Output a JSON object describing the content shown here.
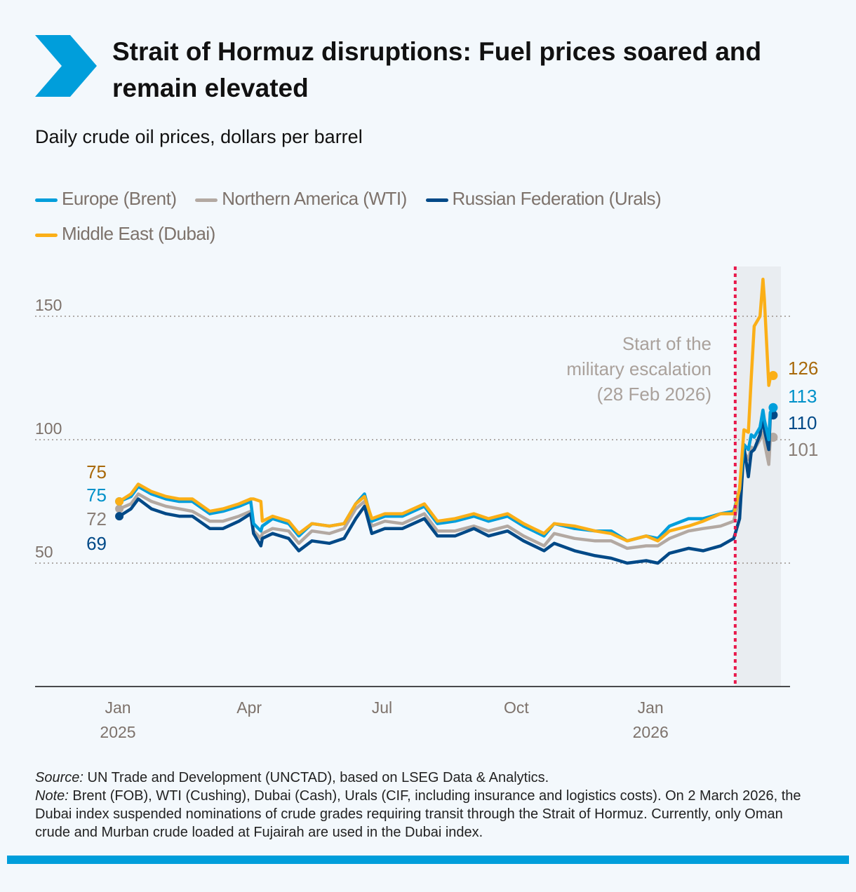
{
  "title": "Strait of Hormuz disruptions: Fuel prices soared and remain elevated",
  "subtitle": "Daily crude oil prices, dollars per barrel",
  "colors": {
    "accent": "#009edb",
    "brent": "#009edb",
    "wti": "#b3a9a2",
    "urals": "#004987",
    "dubai": "#fbaf17",
    "event_line": "#e8194b",
    "shade": "#e9edf1"
  },
  "legend": [
    {
      "label": "Europe (Brent)",
      "color": "#009edb"
    },
    {
      "label": "Northern America (WTI)",
      "color": "#b3a9a2"
    },
    {
      "label": "Russian Federation (Urals)",
      "color": "#004987"
    },
    {
      "label": "Middle East (Dubai)",
      "color": "#fbaf17"
    }
  ],
  "chart_data": {
    "type": "line",
    "title": "Daily crude oil prices, dollars per barrel",
    "xlabel": "",
    "ylabel": "dollars per barrel",
    "ylim": [
      0,
      170
    ],
    "yticks": [
      50,
      100,
      150
    ],
    "grid": true,
    "legend_position": "top",
    "x_ticks": [
      {
        "date": "2025-01-01",
        "label": "Jan",
        "sublabel": "2025"
      },
      {
        "date": "2025-04-01",
        "label": "Apr",
        "sublabel": ""
      },
      {
        "date": "2025-07-01",
        "label": "Jul",
        "sublabel": ""
      },
      {
        "date": "2025-10-01",
        "label": "Oct",
        "sublabel": ""
      },
      {
        "date": "2026-01-01",
        "label": "Jan",
        "sublabel": "2026"
      }
    ],
    "x": [
      "2025-01-02",
      "2025-01-10",
      "2025-01-15",
      "2025-01-24",
      "2025-02-03",
      "2025-02-12",
      "2025-02-21",
      "2025-03-05",
      "2025-03-14",
      "2025-03-25",
      "2025-04-02",
      "2025-04-04",
      "2025-04-09",
      "2025-04-10",
      "2025-04-17",
      "2025-04-28",
      "2025-05-05",
      "2025-05-14",
      "2025-05-26",
      "2025-06-05",
      "2025-06-13",
      "2025-06-19",
      "2025-06-24",
      "2025-07-03",
      "2025-07-15",
      "2025-07-30",
      "2025-08-08",
      "2025-08-20",
      "2025-09-02",
      "2025-09-12",
      "2025-09-25",
      "2025-10-06",
      "2025-10-20",
      "2025-10-27",
      "2025-11-10",
      "2025-11-24",
      "2025-12-05",
      "2025-12-16",
      "2025-12-29",
      "2026-01-06",
      "2026-01-14",
      "2026-01-27",
      "2026-02-06",
      "2026-02-18",
      "2026-02-27",
      "2026-03-03",
      "2026-03-06",
      "2026-03-09",
      "2026-03-11",
      "2026-03-13",
      "2026-03-17",
      "2026-03-19",
      "2026-03-20",
      "2026-03-23",
      "2026-03-24",
      "2026-03-26"
    ],
    "series": [
      {
        "name": "Northern America (WTI)",
        "key": "wti",
        "start_label": "72",
        "end_label": "101",
        "values": [
          72,
          74,
          78,
          75,
          73,
          72,
          71,
          67,
          67,
          69,
          71,
          63,
          60,
          62,
          64,
          63,
          58,
          63,
          62,
          64,
          72,
          75,
          65,
          67,
          66,
          70,
          63,
          63,
          65,
          63,
          65,
          61,
          57,
          62,
          60,
          59,
          59,
          56,
          57,
          57,
          60,
          63,
          64,
          65,
          67,
          77,
          95,
          92,
          97,
          96,
          100,
          103,
          99,
          90,
          100,
          101
        ]
      },
      {
        "name": "Russian Federation (Urals)",
        "key": "urals",
        "start_label": "69",
        "end_label": "110",
        "values": [
          69,
          72,
          76,
          72,
          70,
          69,
          69,
          64,
          64,
          67,
          70,
          62,
          57,
          60,
          62,
          60,
          55,
          59,
          58,
          60,
          68,
          73,
          62,
          64,
          64,
          68,
          61,
          61,
          64,
          61,
          63,
          59,
          55,
          58,
          55,
          53,
          52,
          50,
          51,
          50,
          54,
          56,
          55,
          57,
          60,
          68,
          97,
          85,
          95,
          96,
          102,
          110,
          104,
          96,
          109,
          110
        ]
      },
      {
        "name": "Europe (Brent)",
        "key": "brent",
        "start_label": "75",
        "end_label": "113",
        "values": [
          75,
          77,
          81,
          78,
          76,
          75,
          75,
          70,
          71,
          73,
          75,
          66,
          63,
          65,
          68,
          66,
          61,
          66,
          65,
          66,
          74,
          78,
          67,
          69,
          69,
          73,
          66,
          67,
          69,
          67,
          69,
          65,
          61,
          66,
          64,
          63,
          63,
          59,
          61,
          60,
          65,
          68,
          68,
          70,
          71,
          80,
          98,
          96,
          102,
          101,
          105,
          112,
          108,
          100,
          111,
          113
        ]
      },
      {
        "name": "Middle East (Dubai)",
        "key": "dubai",
        "start_label": "75",
        "end_label": "126",
        "values": [
          75,
          78,
          82,
          79,
          77,
          76,
          76,
          71,
          72,
          74,
          76,
          76,
          75,
          67,
          69,
          67,
          62,
          66,
          65,
          66,
          74,
          77,
          68,
          70,
          70,
          74,
          67,
          68,
          70,
          68,
          70,
          66,
          62,
          66,
          65,
          63,
          62,
          59,
          61,
          59,
          63,
          65,
          67,
          70,
          70,
          80,
          104,
          103,
          125,
          146,
          150,
          165,
          157,
          122,
          125,
          126
        ]
      }
    ],
    "annotations": [
      {
        "date": "2026-02-28",
        "text_lines": [
          "Start of the",
          "military escalation",
          "(28 Feb 2026)"
        ]
      }
    ]
  },
  "notes": {
    "source_label": "Source:",
    "source_text": " UN Trade and Development (UNCTAD), based on LSEG Data & Analytics.",
    "note_label": "Note:",
    "note_text": " Brent (FOB), WTI (Cushing), Dubai (Cash), Urals (CIF, including insurance and logistics costs). On 2 March 2026, the Dubai index suspended nominations of crude grades requiring transit through the Strait of Hormuz. Currently, only Oman crude and Murban crude loaded at Fujairah are used in the Dubai index."
  }
}
